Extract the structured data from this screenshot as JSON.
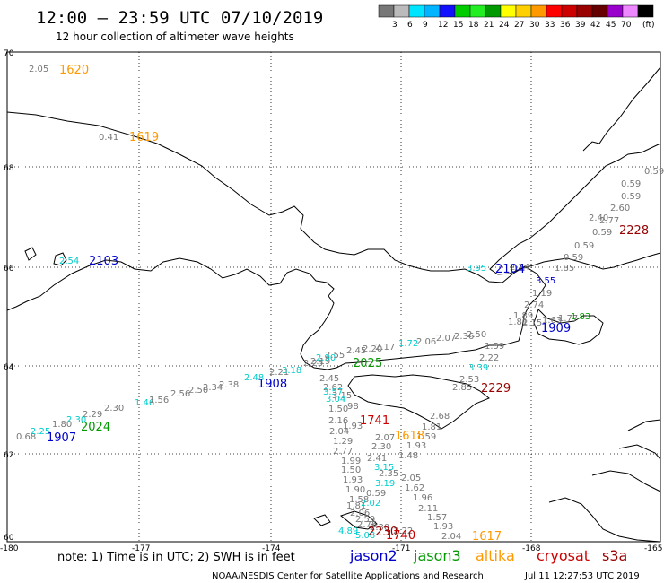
{
  "header": {
    "title": "12:00 – 23:59 UTC 07/10/2019",
    "subtitle": "12 hour collection of altimeter wave heights"
  },
  "colorbar": {
    "unit": "(ft)",
    "bins": [
      {
        "label": "",
        "color": "#777777"
      },
      {
        "label": "3",
        "color": "#bbbbbb"
      },
      {
        "label": "6",
        "color": "#00e5ff"
      },
      {
        "label": "9",
        "color": "#00b4ff"
      },
      {
        "label": "12",
        "color": "#1010ff"
      },
      {
        "label": "15",
        "color": "#00cc00"
      },
      {
        "label": "18",
        "color": "#22ee22"
      },
      {
        "label": "21",
        "color": "#009900"
      },
      {
        "label": "24",
        "color": "#ffff00"
      },
      {
        "label": "27",
        "color": "#ffd000"
      },
      {
        "label": "30",
        "color": "#ff9900"
      },
      {
        "label": "33",
        "color": "#ff0000"
      },
      {
        "label": "36",
        "color": "#cc0000"
      },
      {
        "label": "39",
        "color": "#990000"
      },
      {
        "label": "42",
        "color": "#660000"
      },
      {
        "label": "45",
        "color": "#9900cc"
      },
      {
        "label": "70",
        "color": "#ee88ff"
      },
      {
        "label": "",
        "color": "#000000"
      }
    ]
  },
  "axes": {
    "lat_labels": [
      "70",
      "68",
      "66",
      "64",
      "62",
      "60"
    ],
    "lon_labels": [
      "-180",
      "-177",
      "-174",
      "-171",
      "-168",
      "-165"
    ]
  },
  "pass_times": [
    {
      "text": "1620",
      "color": "#ff9900"
    },
    {
      "text": "1619",
      "color": "#ff9900"
    },
    {
      "text": "2103",
      "color": "#0000cc"
    },
    {
      "text": "2104",
      "color": "#0000cc"
    },
    {
      "text": "2228",
      "color": "#990000"
    },
    {
      "text": "1909",
      "color": "#0000cc"
    },
    {
      "text": "2025",
      "color": "#009900"
    },
    {
      "text": "1908",
      "color": "#0000cc"
    },
    {
      "text": "2229",
      "color": "#990000"
    },
    {
      "text": "1741",
      "color": "#cc0000"
    },
    {
      "text": "1618",
      "color": "#ff9900"
    },
    {
      "text": "2024",
      "color": "#009900"
    },
    {
      "text": "1907",
      "color": "#0000cc"
    },
    {
      "text": "2230",
      "color": "#990000"
    },
    {
      "text": "1740",
      "color": "#cc0000"
    },
    {
      "text": "1617",
      "color": "#ff9900"
    }
  ],
  "swh_values": [
    {
      "text": "2.05",
      "color": "#777777"
    },
    {
      "text": "0.41",
      "color": "#777777"
    },
    {
      "text": "2.54",
      "color": "#00cccc"
    },
    {
      "text": "0.59",
      "color": "#777777"
    },
    {
      "text": "0.59",
      "color": "#777777"
    },
    {
      "text": "0.59",
      "color": "#777777"
    },
    {
      "text": "2.60",
      "color": "#777777"
    },
    {
      "text": "2.77",
      "color": "#777777"
    },
    {
      "text": "2.40",
      "color": "#777777"
    },
    {
      "text": "0.59",
      "color": "#777777"
    },
    {
      "text": "0.59",
      "color": "#777777"
    },
    {
      "text": "0.59",
      "color": "#777777"
    },
    {
      "text": "1.85",
      "color": "#777777"
    },
    {
      "text": "3.95",
      "color": "#00cccc"
    },
    {
      "text": "2.24",
      "color": "#777777"
    },
    {
      "text": "3.55",
      "color": "#0000cc"
    },
    {
      "text": "1.19",
      "color": "#777777"
    },
    {
      "text": "2.74",
      "color": "#777777"
    },
    {
      "text": "1.89",
      "color": "#777777"
    },
    {
      "text": "1.59",
      "color": "#777777"
    },
    {
      "text": "2.22",
      "color": "#777777"
    },
    {
      "text": "3.39",
      "color": "#00cccc"
    },
    {
      "text": "2.53",
      "color": "#777777"
    },
    {
      "text": "2.85",
      "color": "#777777"
    },
    {
      "text": "2.68",
      "color": "#777777"
    },
    {
      "text": "1.81",
      "color": "#777777"
    },
    {
      "text": "1.59",
      "color": "#777777"
    },
    {
      "text": "1.93",
      "color": "#777777"
    },
    {
      "text": "1.48",
      "color": "#777777"
    },
    {
      "text": "2.05",
      "color": "#777777"
    },
    {
      "text": "1.62",
      "color": "#777777"
    },
    {
      "text": "1.96",
      "color": "#777777"
    },
    {
      "text": "2.11",
      "color": "#777777"
    },
    {
      "text": "1.57",
      "color": "#777777"
    },
    {
      "text": "1.93",
      "color": "#777777"
    },
    {
      "text": "2.04",
      "color": "#777777"
    },
    {
      "text": "2.45",
      "color": "#777777"
    },
    {
      "text": "2.62",
      "color": "#777777"
    },
    {
      "text": "3.57",
      "color": "#00cccc"
    },
    {
      "text": "3.15",
      "color": "#777777"
    },
    {
      "text": "3.04",
      "color": "#00cccc"
    },
    {
      "text": "1.50",
      "color": "#777777"
    },
    {
      "text": "98",
      "color": "#777777"
    },
    {
      "text": "2.16",
      "color": "#777777"
    },
    {
      "text": "1.93",
      "color": "#777777"
    },
    {
      "text": "2.04",
      "color": "#777777"
    },
    {
      "text": "2.07",
      "color": "#777777"
    },
    {
      "text": "1.29",
      "color": "#777777"
    },
    {
      "text": "2.30",
      "color": "#777777"
    },
    {
      "text": "2.77",
      "color": "#777777"
    },
    {
      "text": "2.41",
      "color": "#777777"
    },
    {
      "text": "1.99",
      "color": "#777777"
    },
    {
      "text": "3.15",
      "color": "#00cccc"
    },
    {
      "text": "1.50",
      "color": "#777777"
    },
    {
      "text": "2.35",
      "color": "#777777"
    },
    {
      "text": "1.93",
      "color": "#777777"
    },
    {
      "text": "3.19",
      "color": "#00cccc"
    },
    {
      "text": "1.90",
      "color": "#777777"
    },
    {
      "text": "0.59",
      "color": "#777777"
    },
    {
      "text": "1.58",
      "color": "#777777"
    },
    {
      "text": "2.02",
      "color": "#00cccc"
    },
    {
      "text": "1.81",
      "color": "#777777"
    },
    {
      "text": "2.06",
      "color": "#777777"
    },
    {
      "text": "2.59",
      "color": "#777777"
    },
    {
      "text": "2.76",
      "color": "#777777"
    },
    {
      "text": "4.89",
      "color": "#00cccc"
    },
    {
      "text": "5.08",
      "color": "#00cccc"
    },
    {
      "text": "2.30",
      "color": "#777777"
    },
    {
      "text": "2.22",
      "color": "#777777"
    },
    {
      "text": "0.68",
      "color": "#777777"
    },
    {
      "text": "2.25",
      "color": "#00cccc"
    },
    {
      "text": "1.80",
      "color": "#777777"
    },
    {
      "text": "2.30",
      "color": "#00cccc"
    },
    {
      "text": "2.29",
      "color": "#777777"
    },
    {
      "text": "2.30",
      "color": "#777777"
    },
    {
      "text": "1.46",
      "color": "#00cccc"
    },
    {
      "text": "1.56",
      "color": "#777777"
    },
    {
      "text": "2.56",
      "color": "#777777"
    },
    {
      "text": "2.50",
      "color": "#777777"
    },
    {
      "text": "2.34",
      "color": "#777777"
    },
    {
      "text": "2.38",
      "color": "#777777"
    },
    {
      "text": "2.48",
      "color": "#00cccc"
    },
    {
      "text": "2.21",
      "color": "#777777"
    },
    {
      "text": "3.18",
      "color": "#00cccc"
    },
    {
      "text": "2.25",
      "color": "#777777"
    },
    {
      "text": "2.19",
      "color": "#777777"
    },
    {
      "text": "2.90",
      "color": "#00cccc"
    },
    {
      "text": "2.55",
      "color": "#777777"
    },
    {
      "text": "2.45",
      "color": "#777777"
    },
    {
      "text": "2.20",
      "color": "#777777"
    },
    {
      "text": "2.17",
      "color": "#777777"
    },
    {
      "text": "1.72",
      "color": "#00cccc"
    },
    {
      "text": "2.06",
      "color": "#777777"
    },
    {
      "text": "2.07",
      "color": "#777777"
    },
    {
      "text": "2.36",
      "color": "#777777"
    },
    {
      "text": "2.50",
      "color": "#777777"
    },
    {
      "text": "1.81",
      "color": "#777777"
    },
    {
      "text": "2.15",
      "color": "#777777"
    },
    {
      "text": "1.63",
      "color": "#777777"
    },
    {
      "text": "1.77",
      "color": "#777777"
    },
    {
      "text": "1.83",
      "color": "#009900"
    }
  ],
  "footer": {
    "note": "note: 1) Time is in UTC; 2) SWH is in feet",
    "legend": [
      {
        "name": "jason2",
        "color": "#0000cc"
      },
      {
        "name": "jason3",
        "color": "#009900"
      },
      {
        "name": "altika",
        "color": "#ff9900"
      },
      {
        "name": "cryosat",
        "color": "#cc0000"
      },
      {
        "name": "s3a",
        "color": "#990000"
      }
    ],
    "credit": "NOAA/NESDIS Center for Satellite Applications and Research",
    "timestamp": "Jul 11 12:27:53 UTC 2019"
  }
}
